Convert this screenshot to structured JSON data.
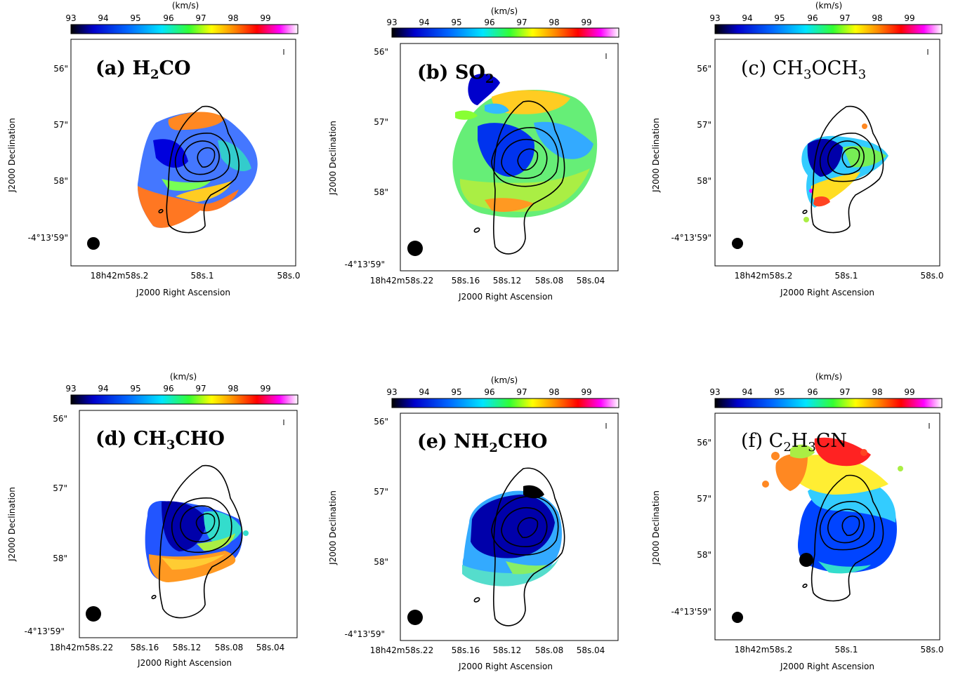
{
  "colorbar": {
    "unit": "(km/s)",
    "ticks": [
      "93",
      "94",
      "95",
      "96",
      "97",
      "98",
      "99"
    ],
    "range": [
      93,
      100
    ],
    "colors": [
      "#000000",
      "#0000cc",
      "#0066ff",
      "#00e5ff",
      "#33ff33",
      "#ffff00",
      "#ff8800",
      "#ff0000",
      "#ff00ff",
      "#ffffff"
    ]
  },
  "axes": {
    "xlabel": "J2000 Right Ascension",
    "ylabel": "J2000 Declination"
  },
  "panels": [
    {
      "id": "a",
      "label": "(a) H",
      "sub": "2",
      "label_rest": "CO",
      "ra_ticks": [
        "18h42m58s.2",
        "58s.1",
        "58s.0"
      ],
      "dec_ticks": [
        "56\"",
        "57\"",
        "58\"",
        "-4°13'59\""
      ]
    },
    {
      "id": "b",
      "label": "(b) SO",
      "sub": "2",
      "label_rest": "",
      "ra_ticks": [
        "18h42m58s.22",
        "58s.16",
        "58s.12",
        "58s.08",
        "58s.04"
      ],
      "dec_ticks": [
        "56\"",
        "57\"",
        "58\"",
        "-4°13'59\""
      ]
    },
    {
      "id": "c",
      "label": "(c) CH",
      "sub": "3",
      "label_rest": "OCH",
      "sub2": "3",
      "ra_ticks": [
        "18h42m58s.2",
        "58s.1",
        "58s.0"
      ],
      "dec_ticks": [
        "56\"",
        "57\"",
        "58\"",
        "-4°13'59\""
      ]
    },
    {
      "id": "d",
      "label": "(d) CH",
      "sub": "3",
      "label_rest": "CHO",
      "ra_ticks": [
        "18h42m58s.22",
        "58s.16",
        "58s.12",
        "58s.08",
        "58s.04"
      ],
      "dec_ticks": [
        "56\"",
        "57\"",
        "58\"",
        "-4°13'59\""
      ]
    },
    {
      "id": "e",
      "label": "(e) NH",
      "sub": "2",
      "label_rest": "CHO",
      "ra_ticks": [
        "18h42m58s.22",
        "58s.16",
        "58s.12",
        "58s.08",
        "58s.04"
      ],
      "dec_ticks": [
        "56\"",
        "57\"",
        "58\"",
        "-4°13'59\""
      ]
    },
    {
      "id": "f",
      "label": "(f) C",
      "sub": "2",
      "label_rest": "H",
      "sub2": "3",
      "label_rest2": "CN",
      "ra_ticks": [
        "18h42m58s.2",
        "58s.1",
        "58s.0"
      ],
      "dec_ticks": [
        "56\"",
        "57\"",
        "58\"",
        "-4°13'59\""
      ]
    }
  ]
}
